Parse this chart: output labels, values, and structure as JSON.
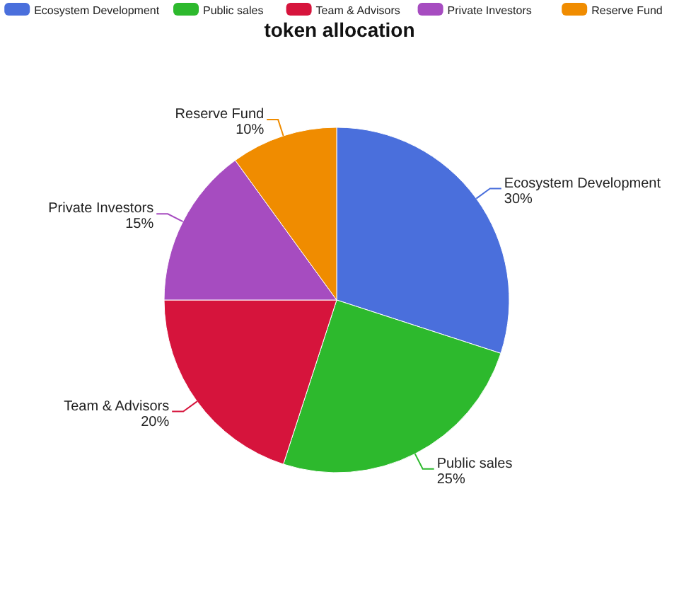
{
  "chart_data": {
    "type": "pie",
    "title": "token allocation",
    "categories": [
      "Ecosystem Development",
      "Public sales",
      "Team & Advisors",
      "Private Investors",
      "Reserve Fund"
    ],
    "values": [
      30,
      25,
      20,
      15,
      10
    ],
    "colors": [
      "#4a6fdc",
      "#2db92d",
      "#d6143c",
      "#a64cc0",
      "#f08c00"
    ],
    "value_labels": [
      "30%",
      "25%",
      "20%",
      "15%",
      "10%"
    ],
    "legend": "top"
  }
}
